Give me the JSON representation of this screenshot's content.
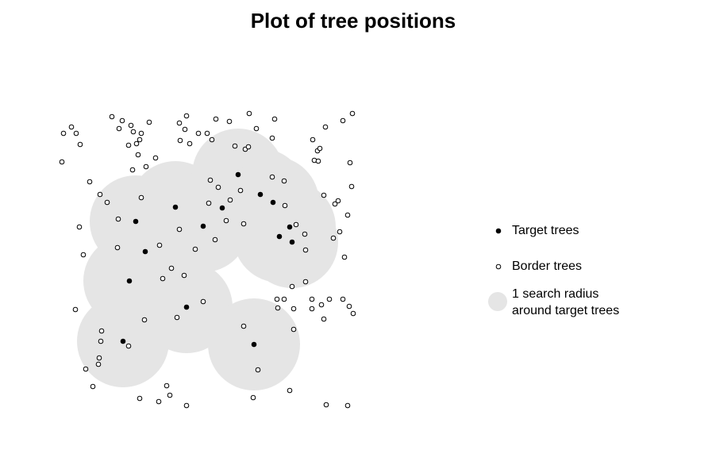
{
  "chart_data": {
    "type": "scatter",
    "title": "Plot of tree positions",
    "xlim": [
      0,
      400
    ],
    "ylim": [
      0,
      400
    ],
    "series": [
      {
        "name": "Target trees",
        "color": "#000000",
        "marker": "filled",
        "x": [
          111,
          161,
          123,
          103,
          175,
          95,
          196,
          220,
          240,
          268,
          284,
          305,
          292,
          308,
          260
        ],
        "y": [
          251,
          269,
          213,
          176,
          143,
          100,
          245,
          268,
          310,
          285,
          275,
          244,
          232,
          225,
          96
        ]
      },
      {
        "name": "Border trees",
        "color": "#000000",
        "marker": "open",
        "x": [
          20,
          30,
          36,
          41,
          18,
          81,
          94,
          105,
          90,
          108,
          118,
          116,
          112,
          102,
          128,
          114,
          124,
          107,
          136,
          166,
          175,
          173,
          167,
          179,
          190,
          201,
          212,
          229,
          207,
          254,
          263,
          286,
          283,
          236,
          249,
          253,
          350,
          372,
          384,
          334,
          340,
          343,
          336,
          341,
          381,
          53,
          66,
          75,
          118,
          205,
          215,
          203,
          243,
          230,
          283,
          298,
          299,
          348,
          366,
          362,
          383,
          89,
          40,
          166,
          225,
          247,
          313,
          324,
          360,
          368,
          378,
          45,
          88,
          141,
          186,
          211,
          325,
          374,
          156,
          145,
          172,
          308,
          325,
          35,
          196,
          163,
          122,
          289,
          298,
          290,
          310,
          333,
          333,
          345,
          355,
          372,
          380,
          385,
          348,
          68,
          67,
          102,
          247,
          310,
          65,
          64,
          48,
          265,
          57,
          150,
          154,
          116,
          140,
          175,
          259,
          305,
          351,
          378
        ],
        "y": [
          362,
          370,
          362,
          348,
          326,
          383,
          378,
          372,
          368,
          364,
          362,
          354,
          349,
          347,
          376,
          335,
          320,
          316,
          331,
          375,
          384,
          367,
          353,
          349,
          362,
          362,
          380,
          377,
          354,
          387,
          368,
          380,
          356,
          346,
          342,
          345,
          370,
          378,
          387,
          354,
          340,
          343,
          328,
          327,
          325,
          301,
          285,
          275,
          281,
          303,
          294,
          274,
          290,
          278,
          307,
          302,
          271,
          284,
          277,
          273,
          295,
          254,
          244,
          241,
          252,
          248,
          247,
          235,
          230,
          238,
          259,
          209,
          218,
          221,
          216,
          228,
          215,
          206,
          192,
          179,
          183,
          169,
          175,
          140,
          150,
          130,
          127,
          153,
          153,
          142,
          141,
          153,
          141,
          146,
          153,
          153,
          144,
          135,
          128,
          113,
          100,
          94,
          119,
          115,
          79,
          71,
          65,
          64,
          43,
          44,
          32,
          28,
          24,
          19,
          29,
          38,
          20,
          19
        ]
      }
    ],
    "search_radius": {
      "name": "1 search radius\naround target trees",
      "color": "#e5e5e5",
      "radius": 58
    }
  }
}
